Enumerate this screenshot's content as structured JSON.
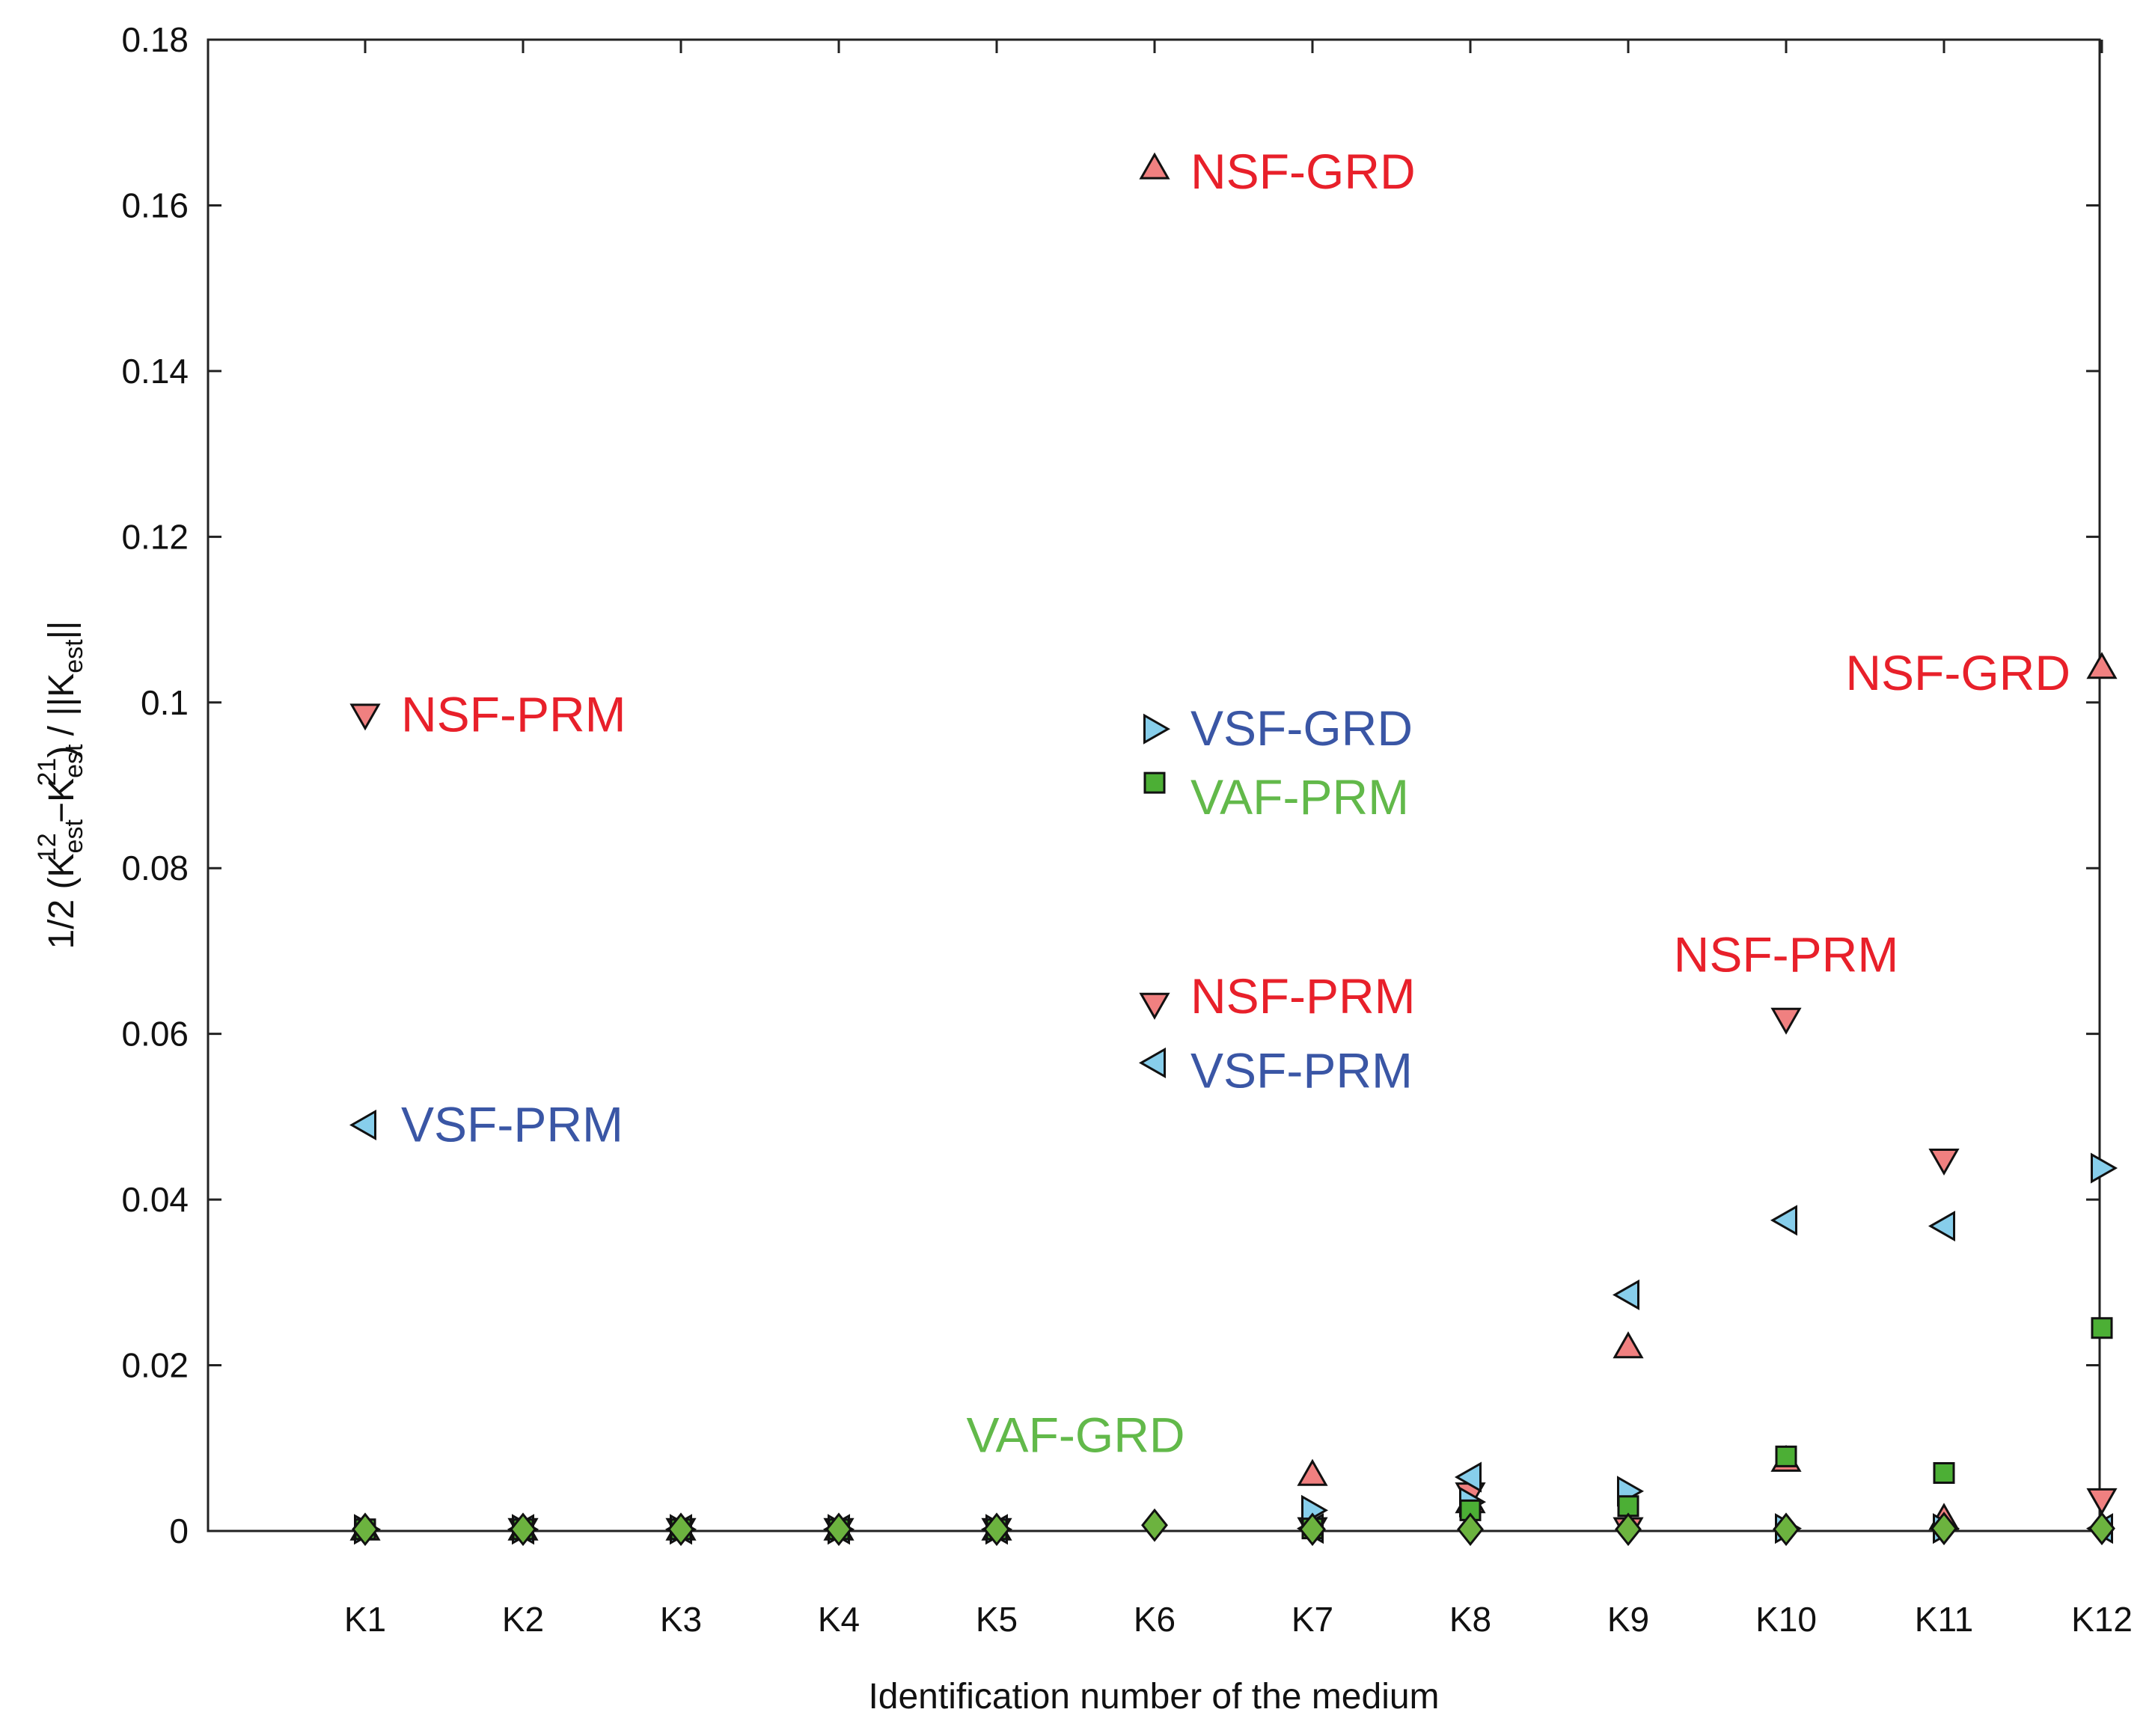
{
  "chart_data": {
    "type": "scatter",
    "title": "",
    "xlabel": "Identification number of the medium",
    "ylabel": {
      "prefix": "1/2 (K",
      "sub1": "est",
      "sup1": "12",
      "minus": " −K",
      "sub2": "est",
      "sup2": "21",
      "middle": ") / ||K",
      "sub3": "est",
      "suffix": "||"
    },
    "categories": [
      "K1",
      "K2",
      "K3",
      "K4",
      "K5",
      "K6",
      "K7",
      "K8",
      "K9",
      "K10",
      "K11",
      "K12"
    ],
    "ylim": [
      0,
      0.18
    ],
    "yticks": [
      "0",
      "0.02",
      "0.04",
      "0.06",
      "0.08",
      "0.1",
      "0.12",
      "0.14",
      "0.16",
      "0.18"
    ],
    "grid": false,
    "series": [
      {
        "name": "NSF-GRD",
        "marker": "triangle-up",
        "color": "#f08080",
        "values": [
          0.0002,
          0.0002,
          0.0002,
          0.0002,
          0.0002,
          0.1645,
          0.0068,
          0.0035,
          0.0222,
          0.0085,
          0.0015,
          0.1042
        ]
      },
      {
        "name": "NSF-PRM",
        "marker": "triangle-down",
        "color": "#f08080",
        "values": [
          0.0985,
          0.0002,
          0.0002,
          0.0002,
          0.0002,
          0.0636,
          0.0003,
          0.0045,
          0.0003,
          0.0618,
          0.0448,
          0.0038
        ]
      },
      {
        "name": "VSF-GRD",
        "marker": "triangle-right",
        "color": "#87ceeb",
        "values": [
          0.0002,
          0.0002,
          0.0002,
          0.0002,
          0.0002,
          0.0968,
          0.0025,
          0.0035,
          0.0048,
          0.0003,
          0.0003,
          0.0438
        ]
      },
      {
        "name": "VSF-PRM",
        "marker": "triangle-left",
        "color": "#87ceeb",
        "values": [
          0.049,
          0.0002,
          0.0002,
          0.0002,
          0.0002,
          0.0565,
          0.0003,
          0.0065,
          0.0285,
          0.0375,
          0.0368,
          0.0003
        ]
      },
      {
        "name": "VAF-PRM",
        "marker": "square",
        "color": "#4caf35",
        "values": [
          0.0002,
          0.0002,
          0.0002,
          0.0002,
          0.0002,
          0.0903,
          0.0003,
          0.0025,
          0.003,
          0.009,
          0.007,
          0.0245
        ]
      },
      {
        "name": "VAF-GRD",
        "marker": "diamond",
        "color": "#6cb33f",
        "values": [
          0.0002,
          0.0002,
          0.0002,
          0.0002,
          0.0002,
          0.0007,
          0.0002,
          0.0002,
          0.0002,
          0.0002,
          0.0003,
          0.0003
        ]
      }
    ],
    "annotations": [
      {
        "text": "NSF-GRD",
        "color": "#e8202a",
        "x": "K6",
        "y": 0.164,
        "anchor": "start"
      },
      {
        "text": "NSF-PRM",
        "color": "#e8202a",
        "x": "K1",
        "y": 0.0985,
        "anchor": "start"
      },
      {
        "text": "VSF-PRM",
        "color": "#3a56a5",
        "x": "K1",
        "y": 0.049,
        "anchor": "start"
      },
      {
        "text": "VSF-GRD",
        "color": "#3a56a5",
        "x": "K6",
        "y": 0.0968,
        "anchor": "start"
      },
      {
        "text": "VAF-PRM",
        "color": "#62b94a",
        "x": "K6",
        "y": 0.0885,
        "anchor": "start"
      },
      {
        "text": "NSF-PRM",
        "color": "#e8202a",
        "x": "K6",
        "y": 0.0645,
        "anchor": "start"
      },
      {
        "text": "VSF-PRM",
        "color": "#3a56a5",
        "x": "K6",
        "y": 0.0555,
        "anchor": "start"
      },
      {
        "text": "NSF-PRM",
        "color": "#e8202a",
        "x": "K10",
        "y": 0.0695,
        "anchor": "middle"
      },
      {
        "text": "NSF-GRD",
        "color": "#e8202a",
        "x": "K12",
        "y": 0.1035,
        "anchor": "end"
      },
      {
        "text": "VAF-GRD",
        "color": "#62b94a",
        "x": "K5.5",
        "y": 0.0115,
        "anchor": "middle"
      }
    ]
  }
}
